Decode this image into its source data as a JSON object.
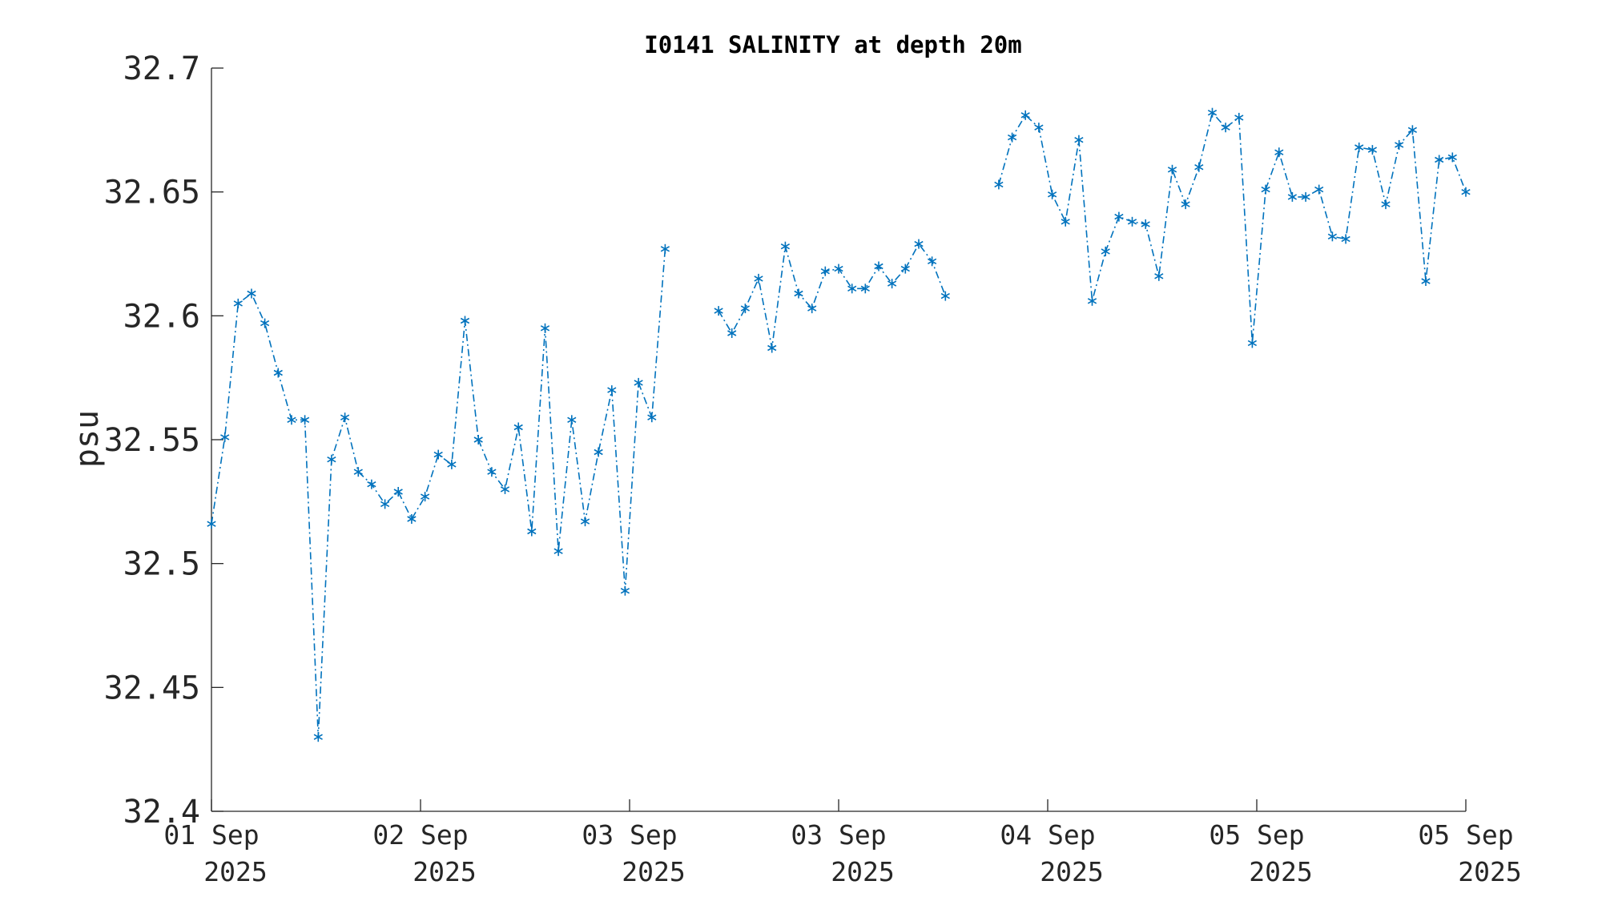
{
  "chart_data": {
    "type": "line",
    "title": "I0141 SALINITY at depth 20m",
    "xlabel": "",
    "ylabel": "psu",
    "ylim": [
      32.4,
      32.7
    ],
    "yticks": [
      "32.4",
      "32.45",
      "32.5",
      "32.55",
      "32.6",
      "32.65",
      "32.7"
    ],
    "xticks": [
      {
        "line1": "01 Sep",
        "line2": "2025"
      },
      {
        "line1": "02 Sep",
        "line2": "2025"
      },
      {
        "line1": "03 Sep",
        "line2": "2025"
      },
      {
        "line1": "03 Sep",
        "line2": "2025"
      },
      {
        "line1": "04 Sep",
        "line2": "2025"
      },
      {
        "line1": "05 Sep",
        "line2": "2025"
      },
      {
        "line1": "05 Sep",
        "line2": "2025"
      }
    ],
    "grid": false,
    "marker": "asterisk",
    "line_style": "dash-dot",
    "color": "#0072BD",
    "series": [
      {
        "segments": [
          [
            32.516,
            32.551,
            32.605,
            32.609,
            32.597,
            32.577,
            32.558,
            32.558,
            32.43,
            32.542,
            32.559,
            32.537,
            32.532,
            32.524,
            32.529,
            32.518,
            32.527,
            32.544,
            32.54,
            32.598,
            32.55,
            32.537,
            32.53,
            32.555,
            32.513,
            32.595,
            32.505,
            32.558,
            32.517,
            32.545,
            32.57,
            32.489,
            32.573,
            32.559,
            32.627
          ],
          [
            32.602,
            32.593,
            32.603,
            32.615,
            32.587,
            32.628,
            32.609,
            32.603,
            32.618,
            32.619,
            32.611,
            32.611,
            32.62,
            32.613,
            32.619,
            32.629,
            32.622,
            32.608
          ],
          [
            32.653,
            32.672,
            32.681,
            32.676,
            32.649,
            32.638,
            32.671,
            32.606,
            32.626,
            32.64,
            32.638,
            32.637,
            32.616,
            32.659,
            32.645,
            32.66,
            32.682,
            32.676,
            32.68,
            32.589,
            32.651,
            32.666,
            32.648,
            32.648,
            32.651,
            32.632,
            32.631,
            32.668,
            32.667,
            32.645,
            32.669,
            32.675,
            32.614,
            32.663,
            32.664,
            32.65
          ]
        ]
      }
    ]
  }
}
